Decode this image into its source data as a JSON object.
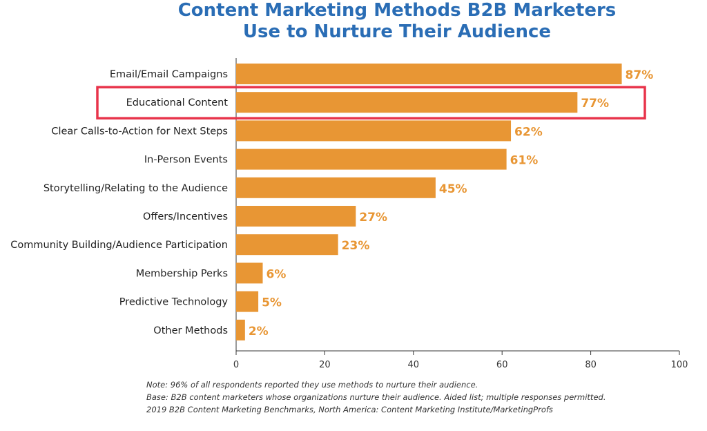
{
  "chart_data": {
    "type": "bar",
    "orientation": "horizontal",
    "title_lines": [
      "Content Marketing Methods B2B Marketers",
      "Use to Nurture Their Audience"
    ],
    "categories": [
      "Email/Email Campaigns",
      "Educational Content",
      "Clear Calls-to-Action for Next Steps",
      "In-Person Events",
      "Storytelling/Relating to the Audience",
      "Offers/Incentives",
      "Community Building/Audience Participation",
      "Membership Perks",
      "Predictive Technology",
      "Other Methods"
    ],
    "values": [
      87,
      77,
      62,
      61,
      45,
      27,
      23,
      6,
      5,
      2
    ],
    "value_labels": [
      "87%",
      "77%",
      "62%",
      "61%",
      "45%",
      "27%",
      "23%",
      "6%",
      "5%",
      "2%"
    ],
    "xlim": [
      0,
      100
    ],
    "xticks": [
      0,
      20,
      40,
      60,
      80,
      100
    ],
    "highlighted_category": "Educational Content",
    "grid": false,
    "colors": {
      "bar": "#E89634",
      "label": "#E89634",
      "title": "#2A6DB5",
      "highlight": "#E8334A",
      "axis": "#333333"
    }
  },
  "notes": [
    "Note: 96% of all respondents reported they use methods to nurture their audience.",
    "Base: B2B content marketers whose organizations nurture their audience. Aided list; multiple responses permitted.",
    "2019 B2B Content Marketing Benchmarks, North America: Content Marketing Institute/MarketingProfs"
  ]
}
